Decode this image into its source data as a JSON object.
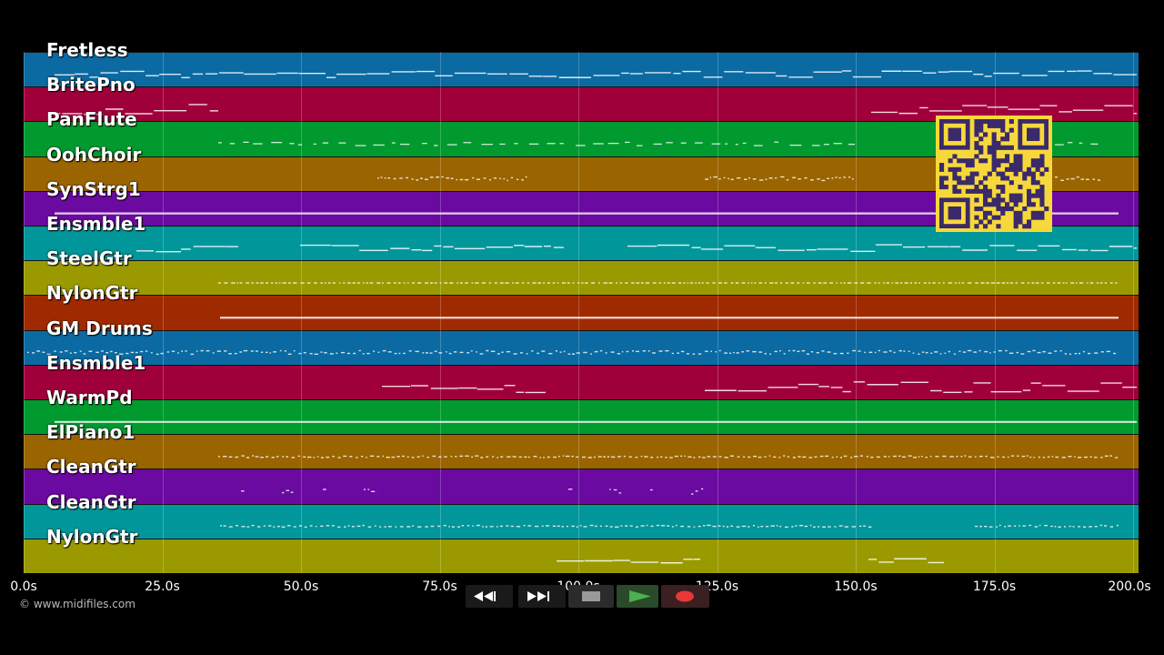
{
  "tracks": [
    {
      "name": "Fretless",
      "color": "#0b6aa2"
    },
    {
      "name": "BritePno",
      "color": "#a0003a"
    },
    {
      "name": "PanFlute",
      "color": "#009a2e"
    },
    {
      "name": "OohChoir",
      "color": "#9a6400"
    },
    {
      "name": "SynStrg1",
      "color": "#6a0aa0"
    },
    {
      "name": "Ensmble1",
      "color": "#00969a"
    },
    {
      "name": "SteelGtr",
      "color": "#9a9a00"
    },
    {
      "name": "NylonGtr",
      "color": "#a02a00"
    },
    {
      "name": "GM Drums",
      "color": "#0b6aa2"
    },
    {
      "name": "Ensmble1",
      "color": "#a0003a"
    },
    {
      "name": "WarmPd",
      "color": "#009a2e"
    },
    {
      "name": "ElPiano1",
      "color": "#9a6400"
    },
    {
      "name": "CleanGtr",
      "color": "#6a0aa0"
    },
    {
      "name": "CleanGtr",
      "color": "#00969a"
    },
    {
      "name": "NylonGtr",
      "color": "#9a9a00"
    }
  ],
  "timeline": {
    "ticks": [
      "0.0s",
      "25.0s",
      "50.0s",
      "75.0s",
      "100.0s",
      "125.0s",
      "150.0s",
      "175.0s",
      "200.0s"
    ],
    "max_seconds": 200
  },
  "copyright": "© www.midifiles.com",
  "transport": {
    "rewind_icon": "rewind-icon",
    "forward_icon": "fast-forward-icon",
    "stop_icon": "stop-icon",
    "play_icon": "play-icon",
    "record_icon": "record-icon",
    "play_color": "#4caf50",
    "record_color": "#e53935"
  },
  "qr_color": "#f7d83a"
}
